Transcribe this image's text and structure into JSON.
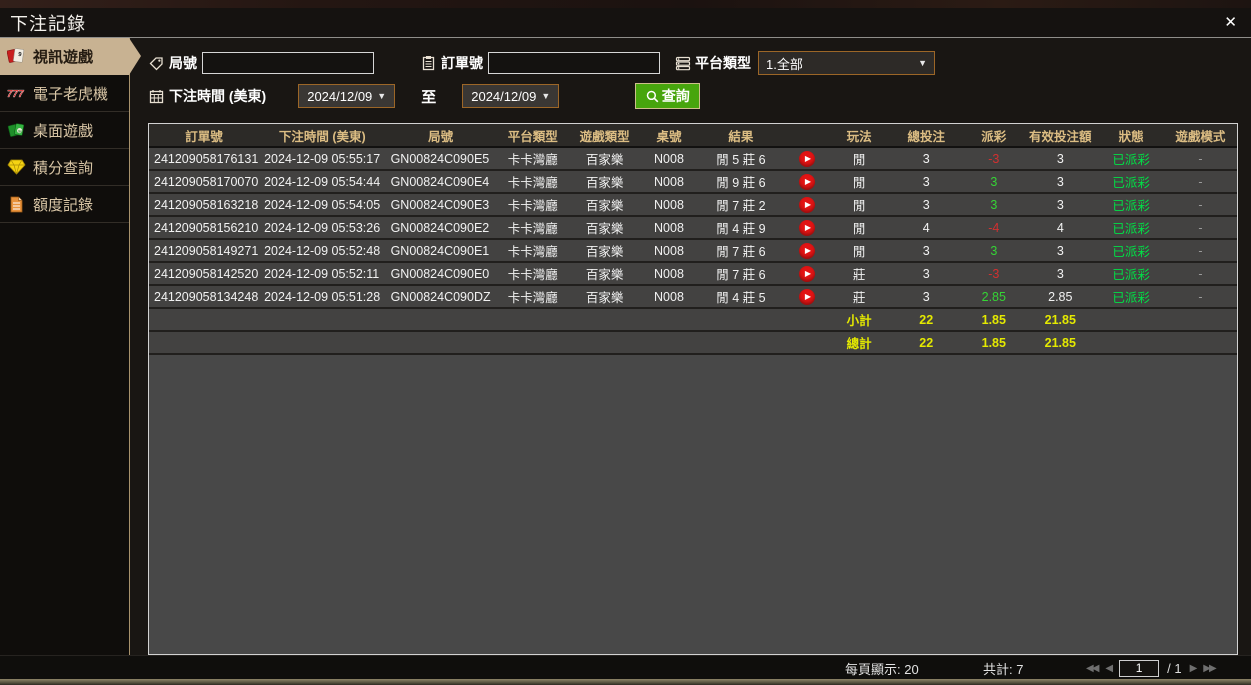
{
  "window": {
    "title": "下注記錄",
    "close_label": "✕"
  },
  "sidebar": {
    "items": [
      {
        "label": "視訊遊戲",
        "icon": "cards-icon",
        "selected": true
      },
      {
        "label": "電子老虎機",
        "icon": "slots-777-icon",
        "selected": false
      },
      {
        "label": "桌面遊戲",
        "icon": "table-games-icon",
        "selected": false
      },
      {
        "label": "積分查詢",
        "icon": "diamond-icon",
        "selected": false
      },
      {
        "label": "額度記錄",
        "icon": "document-icon",
        "selected": false
      }
    ]
  },
  "filters": {
    "round_label": "局號",
    "round_value": "",
    "order_label": "訂單號",
    "order_value": "",
    "platform_label": "平台類型",
    "platform_value": "1.全部",
    "time_label": "下注時間 (美東)",
    "date_from": "2024/12/09",
    "to_label": "至",
    "date_to": "2024/12/09",
    "search_label": "查詢",
    "caret": "▼"
  },
  "table": {
    "headers": [
      "訂單號",
      "下注時間 (美東)",
      "局號",
      "平台類型",
      "遊戲類型",
      "桌號",
      "結果",
      "",
      "玩法",
      "總投注",
      "派彩",
      "有效投注額",
      "狀態",
      "遊戲模式"
    ],
    "col_widths_pct": [
      10.1,
      11.6,
      10.1,
      6.8,
      6.4,
      5.4,
      7.8,
      4.4,
      5.1,
      7.2,
      5.2,
      7.0,
      6.0,
      6.7
    ],
    "rows": [
      {
        "order_no": "241209058176131",
        "time": "2024-12-09 05:55:17",
        "round_no": "GN00824C090E5",
        "platform": "卡卡灣廳",
        "game_type": "百家樂",
        "table_no": "N008",
        "result": "閒 5 莊 6",
        "play_type": "閒",
        "total_bet": "3",
        "payout": "-3",
        "valid_bet": "3",
        "status": "已派彩",
        "game_mode": "-"
      },
      {
        "order_no": "241209058170070",
        "time": "2024-12-09 05:54:44",
        "round_no": "GN00824C090E4",
        "platform": "卡卡灣廳",
        "game_type": "百家樂",
        "table_no": "N008",
        "result": "閒 9 莊 6",
        "play_type": "閒",
        "total_bet": "3",
        "payout": "3",
        "valid_bet": "3",
        "status": "已派彩",
        "game_mode": "-"
      },
      {
        "order_no": "241209058163218",
        "time": "2024-12-09 05:54:05",
        "round_no": "GN00824C090E3",
        "platform": "卡卡灣廳",
        "game_type": "百家樂",
        "table_no": "N008",
        "result": "閒 7 莊 2",
        "play_type": "閒",
        "total_bet": "3",
        "payout": "3",
        "valid_bet": "3",
        "status": "已派彩",
        "game_mode": "-"
      },
      {
        "order_no": "241209058156210",
        "time": "2024-12-09 05:53:26",
        "round_no": "GN00824C090E2",
        "platform": "卡卡灣廳",
        "game_type": "百家樂",
        "table_no": "N008",
        "result": "閒 4 莊 9",
        "play_type": "閒",
        "total_bet": "4",
        "payout": "-4",
        "valid_bet": "4",
        "status": "已派彩",
        "game_mode": "-"
      },
      {
        "order_no": "241209058149271",
        "time": "2024-12-09 05:52:48",
        "round_no": "GN00824C090E1",
        "platform": "卡卡灣廳",
        "game_type": "百家樂",
        "table_no": "N008",
        "result": "閒 7 莊 6",
        "play_type": "閒",
        "total_bet": "3",
        "payout": "3",
        "valid_bet": "3",
        "status": "已派彩",
        "game_mode": "-"
      },
      {
        "order_no": "241209058142520",
        "time": "2024-12-09 05:52:11",
        "round_no": "GN00824C090E0",
        "platform": "卡卡灣廳",
        "game_type": "百家樂",
        "table_no": "N008",
        "result": "閒 7 莊 6",
        "play_type": "莊",
        "total_bet": "3",
        "payout": "-3",
        "valid_bet": "3",
        "status": "已派彩",
        "game_mode": "-"
      },
      {
        "order_no": "241209058134248",
        "time": "2024-12-09 05:51:28",
        "round_no": "GN00824C090DZ",
        "platform": "卡卡灣廳",
        "game_type": "百家樂",
        "table_no": "N008",
        "result": "閒 4 莊 5",
        "play_type": "莊",
        "total_bet": "3",
        "payout": "2.85",
        "valid_bet": "2.85",
        "status": "已派彩",
        "game_mode": "-"
      }
    ],
    "totals": [
      {
        "label": "小計",
        "total_bet": "22",
        "payout": "1.85",
        "valid_bet": "21.85"
      },
      {
        "label": "總計",
        "total_bet": "22",
        "payout": "1.85",
        "valid_bet": "21.85"
      }
    ]
  },
  "footer": {
    "page_size_text": "每頁顯示: 20",
    "total_text": "共計: 7",
    "first": "◀◀",
    "prev": "◀",
    "page_value": "1",
    "page_of": "/  1",
    "next": "▶",
    "last": "▶▶"
  },
  "colors": {
    "accent_tan": "#c8b292",
    "header_gold": "#dcbd83",
    "positive_green": "#35d435",
    "negative_red": "#d23030",
    "status_green": "#00e046",
    "totals_yellow": "#e4e900",
    "button_green": "#47a50d",
    "field_border_orange": "#9c6627"
  }
}
